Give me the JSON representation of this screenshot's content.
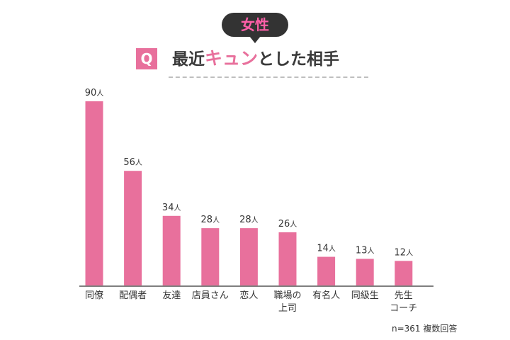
{
  "header": {
    "badge": "女性",
    "q_mark": "Q",
    "title_before": "最近",
    "title_highlight": "キュン",
    "title_after": "とした相手"
  },
  "colors": {
    "bar": "#e8709c",
    "badge_text": "#ff5fa8",
    "badge_bg": "#333333",
    "axis": "#555555"
  },
  "chart_data": {
    "type": "bar",
    "categories": [
      "同僚",
      "配偶者",
      "友達",
      "店員さん",
      "恋人",
      "職場の\n上司",
      "有名人",
      "同級生",
      "先生\nコーチ"
    ],
    "values": [
      90,
      56,
      34,
      28,
      28,
      26,
      14,
      13,
      12
    ],
    "value_suffix": "人",
    "ylim": [
      0,
      100
    ],
    "title": "",
    "xlabel": "",
    "ylabel": "",
    "legend": false,
    "grid": false
  },
  "footnote": "n=361 複数回答"
}
